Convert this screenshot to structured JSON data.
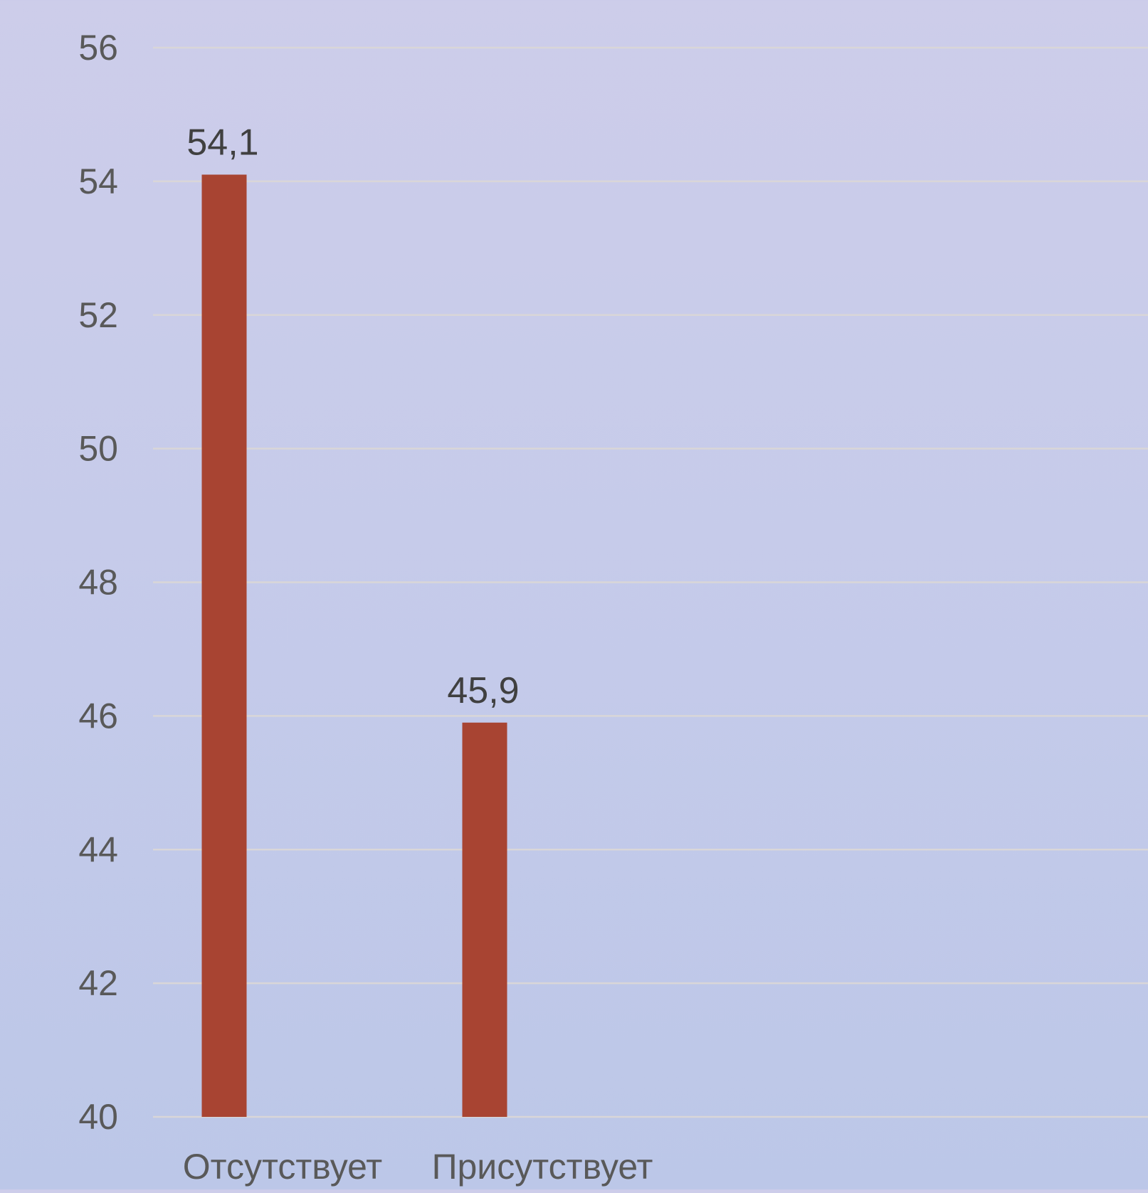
{
  "chart_data": {
    "type": "bar",
    "categories": [
      "Отсутствует",
      "Присутствует"
    ],
    "values": [
      54.1,
      45.9
    ],
    "value_labels": [
      "54,1",
      "45,9"
    ],
    "ylim": [
      40,
      56
    ],
    "yticks": [
      40,
      42,
      44,
      46,
      48,
      50,
      52,
      54,
      56
    ],
    "ytick_labels": [
      "40",
      "42",
      "44",
      "46",
      "48",
      "50",
      "52",
      "54",
      "56"
    ],
    "grid": true,
    "title": "",
    "xlabel": "",
    "ylabel": "",
    "colors": {
      "bar": "#a84432",
      "grid": "#d9d6d8",
      "tick_text": "#595959",
      "label_text": "#404040"
    }
  }
}
